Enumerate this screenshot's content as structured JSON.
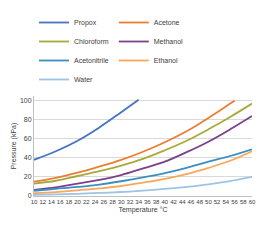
{
  "chart_data": {
    "type": "line",
    "x_label": "Temperature °C",
    "y_label": "Pressure (kPa)",
    "x": [
      10,
      15,
      20,
      25,
      30,
      34,
      35,
      40,
      45,
      50,
      55,
      56,
      60
    ],
    "series": [
      {
        "name": "Propox",
        "color": "#4472c4",
        "values": [
          38,
          47,
          58,
          72,
          88,
          101,
          null,
          null,
          null,
          null,
          null,
          null,
          null
        ]
      },
      {
        "name": "Acetone",
        "color": "#ed7d31",
        "values": [
          15,
          19,
          24.5,
          31,
          38,
          null,
          46.5,
          56.5,
          68,
          82,
          97,
          100,
          null
        ]
      },
      {
        "name": "Chloroform",
        "color": "#a9a93a",
        "values": [
          13,
          16,
          21,
          26,
          32,
          null,
          39,
          48,
          58,
          70,
          83,
          null,
          97
        ]
      },
      {
        "name": "Methanol",
        "color": "#7b3f8c",
        "values": [
          6.5,
          9,
          13,
          17,
          22,
          null,
          29,
          36,
          46,
          57,
          70,
          null,
          84
        ]
      },
      {
        "name": "Acetonitrile",
        "color": "#3a8fc2",
        "values": [
          5.5,
          7.5,
          9.5,
          12,
          15.5,
          null,
          19.5,
          24,
          29.5,
          36,
          42,
          null,
          49
        ]
      },
      {
        "name": "Ethanol",
        "color": "#f7a85a",
        "values": [
          3,
          4,
          6,
          8,
          10.5,
          null,
          14,
          18,
          23,
          29.5,
          37,
          null,
          47
        ]
      },
      {
        "name": "Water",
        "color": "#9dc3e6",
        "values": [
          1.2,
          1.7,
          2.3,
          3.2,
          4.2,
          null,
          5.6,
          7.4,
          9.6,
          12.3,
          15.7,
          null,
          20
        ]
      }
    ],
    "xlim": [
      10,
      60
    ],
    "xticks": [
      10,
      12,
      14,
      16,
      18,
      20,
      22,
      24,
      26,
      28,
      30,
      32,
      34,
      36,
      38,
      40,
      42,
      44,
      46,
      48,
      50,
      52,
      54,
      56,
      58,
      60
    ],
    "ylim": [
      0,
      105
    ],
    "yticks": [
      0,
      20,
      40,
      60,
      80,
      100
    ],
    "grid": true,
    "legend": "top"
  }
}
